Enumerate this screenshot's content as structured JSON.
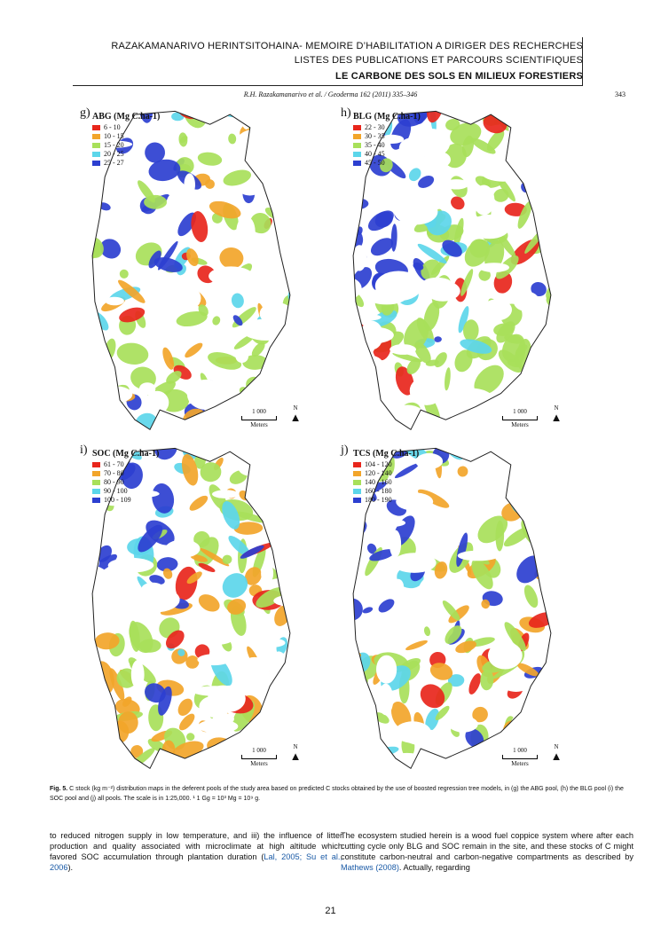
{
  "header": {
    "line1": "RAZAKAMANARIVO HERINTSITOHAINA- MEMOIRE D’HABILITATION A DIRIGER DES RECHERCHES",
    "line2": "LISTES DES PUBLICATIONS ET PARCOURS SCIENTIFIQUES",
    "line3": "LE CARBONE DES SOLS EN MILIEUX FORESTIERS"
  },
  "journal": {
    "reference": "R.H. Razakamanarivo et al. / Geoderma 162 (2011) 335–346",
    "page": "343"
  },
  "panels": [
    {
      "id": "g",
      "label": "g)",
      "title": "ABG (Mg C.ha-1)",
      "classes": [
        {
          "range": "6 - 10",
          "color": "#e8261c"
        },
        {
          "range": "10 - 15",
          "color": "#f2a52a"
        },
        {
          "range": "15 - 20",
          "color": "#a8e05a"
        },
        {
          "range": "20 - 25",
          "color": "#5cd6ea"
        },
        {
          "range": "25 - 27",
          "color": "#2c3fd0"
        }
      ],
      "scale_label": "1 000",
      "scale_unit": "Meters",
      "north": "N"
    },
    {
      "id": "h",
      "label": "h)",
      "title": "BLG (Mg C.ha-1)",
      "classes": [
        {
          "range": "22 - 30",
          "color": "#e8261c"
        },
        {
          "range": "30 - 35",
          "color": "#f2a52a"
        },
        {
          "range": "35 - 40",
          "color": "#a8e05a"
        },
        {
          "range": "40 - 45",
          "color": "#5cd6ea"
        },
        {
          "range": "45 - 50",
          "color": "#2c3fd0"
        }
      ],
      "scale_label": "1 000",
      "scale_unit": "Meters",
      "north": "N"
    },
    {
      "id": "i",
      "label": "i)",
      "title": "SOC (Mg C.ha-1)",
      "classes": [
        {
          "range": "61 - 70",
          "color": "#e8261c"
        },
        {
          "range": "70 - 80",
          "color": "#f2a52a"
        },
        {
          "range": "80 - 90",
          "color": "#a8e05a"
        },
        {
          "range": "90 - 100",
          "color": "#5cd6ea"
        },
        {
          "range": "100 - 109",
          "color": "#2c3fd0"
        }
      ],
      "scale_label": "1 000",
      "scale_unit": "Meters",
      "north": "N"
    },
    {
      "id": "j",
      "label": "j)",
      "title": "TCS (Mg C.ha-1)",
      "classes": [
        {
          "range": "104 - 120",
          "color": "#e8261c"
        },
        {
          "range": "120 - 140",
          "color": "#f2a52a"
        },
        {
          "range": "140 - 160",
          "color": "#a8e05a"
        },
        {
          "range": "160 - 180",
          "color": "#5cd6ea"
        },
        {
          "range": "180 - 190",
          "color": "#2c3fd0"
        }
      ],
      "scale_label": "1 000",
      "scale_unit": "Meters",
      "north": "N"
    }
  ],
  "caption": {
    "label": "Fig. 5.",
    "text": " C stock (kg m⁻²) distribution maps in the deferent pools of the study area based on predicted C stocks obtained by the use of boosted regression tree models, in (g) the ABG pool, (h) the BLG pool (i) the SOC pool and (j) all pools. The scale is in 1:25,000. ¹ 1 Gg = 10³ Mg = 10⁹ g."
  },
  "body_left": {
    "text1": "to reduced nitrogen supply in low temperature, and iii) the influence of litter production and quality associated with microclimate at high altitude which favored SOC accumulation through plantation duration (",
    "cite1": "Lal, 2005; Su et al., 2006",
    "text2": ")."
  },
  "body_right": {
    "text1": "The ecosystem studied herein is a wood fuel coppice system where after each cutting cycle only BLG and SOC remain in the site, and these stocks of C might constitute carbon-neutral and carbon-negative compartments as described by ",
    "cite1": "Mathews (2008)",
    "text2": ". Actually, regarding"
  },
  "page_number": "21"
}
